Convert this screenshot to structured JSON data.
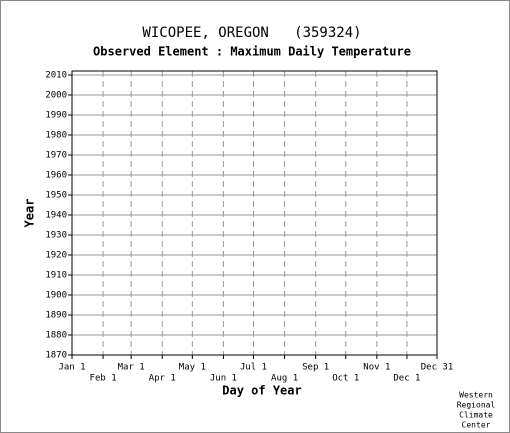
{
  "chart_data": {
    "type": "line",
    "title": "WICOPEE, OREGON   (359324)",
    "subtitle": "Observed Element : Maximum Daily Temperature",
    "x_label": "Day of Year",
    "y_label": "Year",
    "credit": [
      "Western",
      "Regional",
      "Climate",
      "Center"
    ],
    "xlim": [
      1,
      365
    ],
    "xticks": [
      {
        "value": 1,
        "label": "Jan 1"
      },
      {
        "value": 32,
        "label": "Feb 1"
      },
      {
        "value": 60,
        "label": "Mar 1"
      },
      {
        "value": 91,
        "label": "Apr 1"
      },
      {
        "value": 121,
        "label": "May 1"
      },
      {
        "value": 152,
        "label": "Jun 1"
      },
      {
        "value": 182,
        "label": "Jul 1"
      },
      {
        "value": 213,
        "label": "Aug 1"
      },
      {
        "value": 244,
        "label": "Sep 1"
      },
      {
        "value": 274,
        "label": "Oct 1"
      },
      {
        "value": 305,
        "label": "Nov 1"
      },
      {
        "value": 335,
        "label": "Dec 1"
      },
      {
        "value": 365,
        "label": "Dec 31"
      }
    ],
    "ylim": [
      1870,
      2012
    ],
    "yticks": [
      1870,
      1880,
      1890,
      1900,
      1910,
      1920,
      1930,
      1940,
      1950,
      1960,
      1970,
      1980,
      1990,
      2000,
      2010
    ],
    "grid": true,
    "series": []
  }
}
